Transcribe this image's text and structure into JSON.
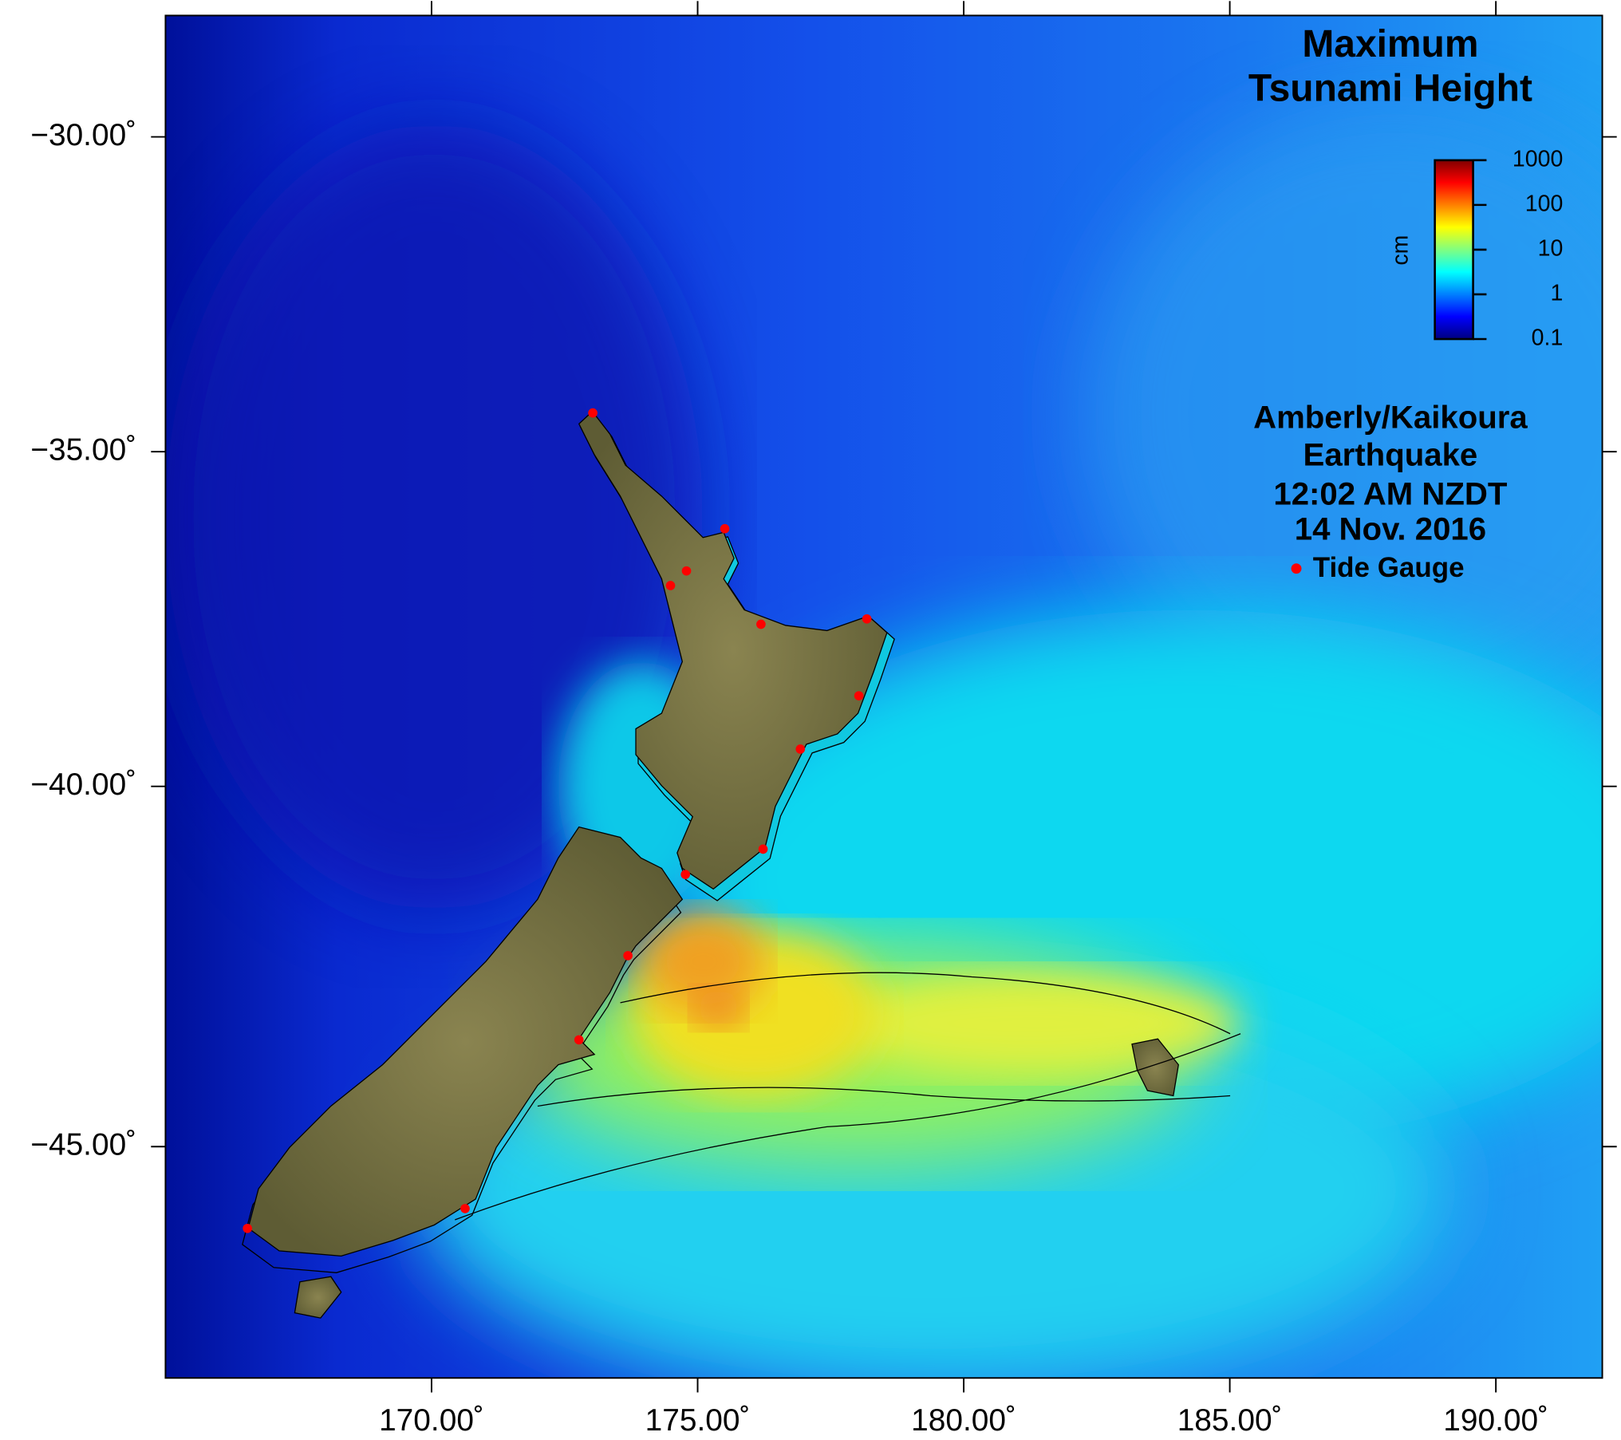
{
  "map": {
    "title_lines": [
      "Maximum",
      "Tsunami Height"
    ],
    "event_lines": [
      "Amberly/Kaikoura",
      "Earthquake",
      "12:02 AM NZDT",
      "14 Nov. 2016"
    ],
    "projection": "mercator",
    "xlim": [
      165,
      192
    ],
    "ylim": [
      -48,
      -28
    ],
    "xticks": [
      {
        "value": 170,
        "label": "170.00˚"
      },
      {
        "value": 175,
        "label": "175.00˚"
      },
      {
        "value": 180,
        "label": "180.00˚"
      },
      {
        "value": 185,
        "label": "185.00˚"
      },
      {
        "value": 190,
        "label": "190.00˚"
      }
    ],
    "yticks": [
      {
        "value": -30,
        "label": "−30.00˚"
      },
      {
        "value": -35,
        "label": "−35.00˚"
      },
      {
        "value": -40,
        "label": "−40.00˚"
      },
      {
        "value": -45,
        "label": "−45.00˚"
      }
    ],
    "colorbar": {
      "label": "cm",
      "scale": "log",
      "ticks": [
        0.1,
        1,
        10,
        100,
        1000
      ],
      "colors": [
        "#000080",
        "#0000ff",
        "#0080ff",
        "#00ffff",
        "#80ff80",
        "#ffff00",
        "#ff8000",
        "#ff0000",
        "#800000"
      ]
    },
    "tide_gauges": {
      "name": "Tide Gauge",
      "color": "#ff0000",
      "lon": [
        173.03,
        175.51,
        174.79,
        174.49,
        176.19,
        178.18,
        178.03,
        176.93,
        176.23,
        174.77,
        173.69,
        172.77,
        170.63,
        166.54
      ],
      "lat": [
        -34.4,
        -36.18,
        -36.82,
        -37.04,
        -37.62,
        -37.54,
        -38.68,
        -39.46,
        -40.9,
        -41.26,
        -42.4,
        -43.56,
        -45.82,
        -46.08
      ]
    }
  }
}
